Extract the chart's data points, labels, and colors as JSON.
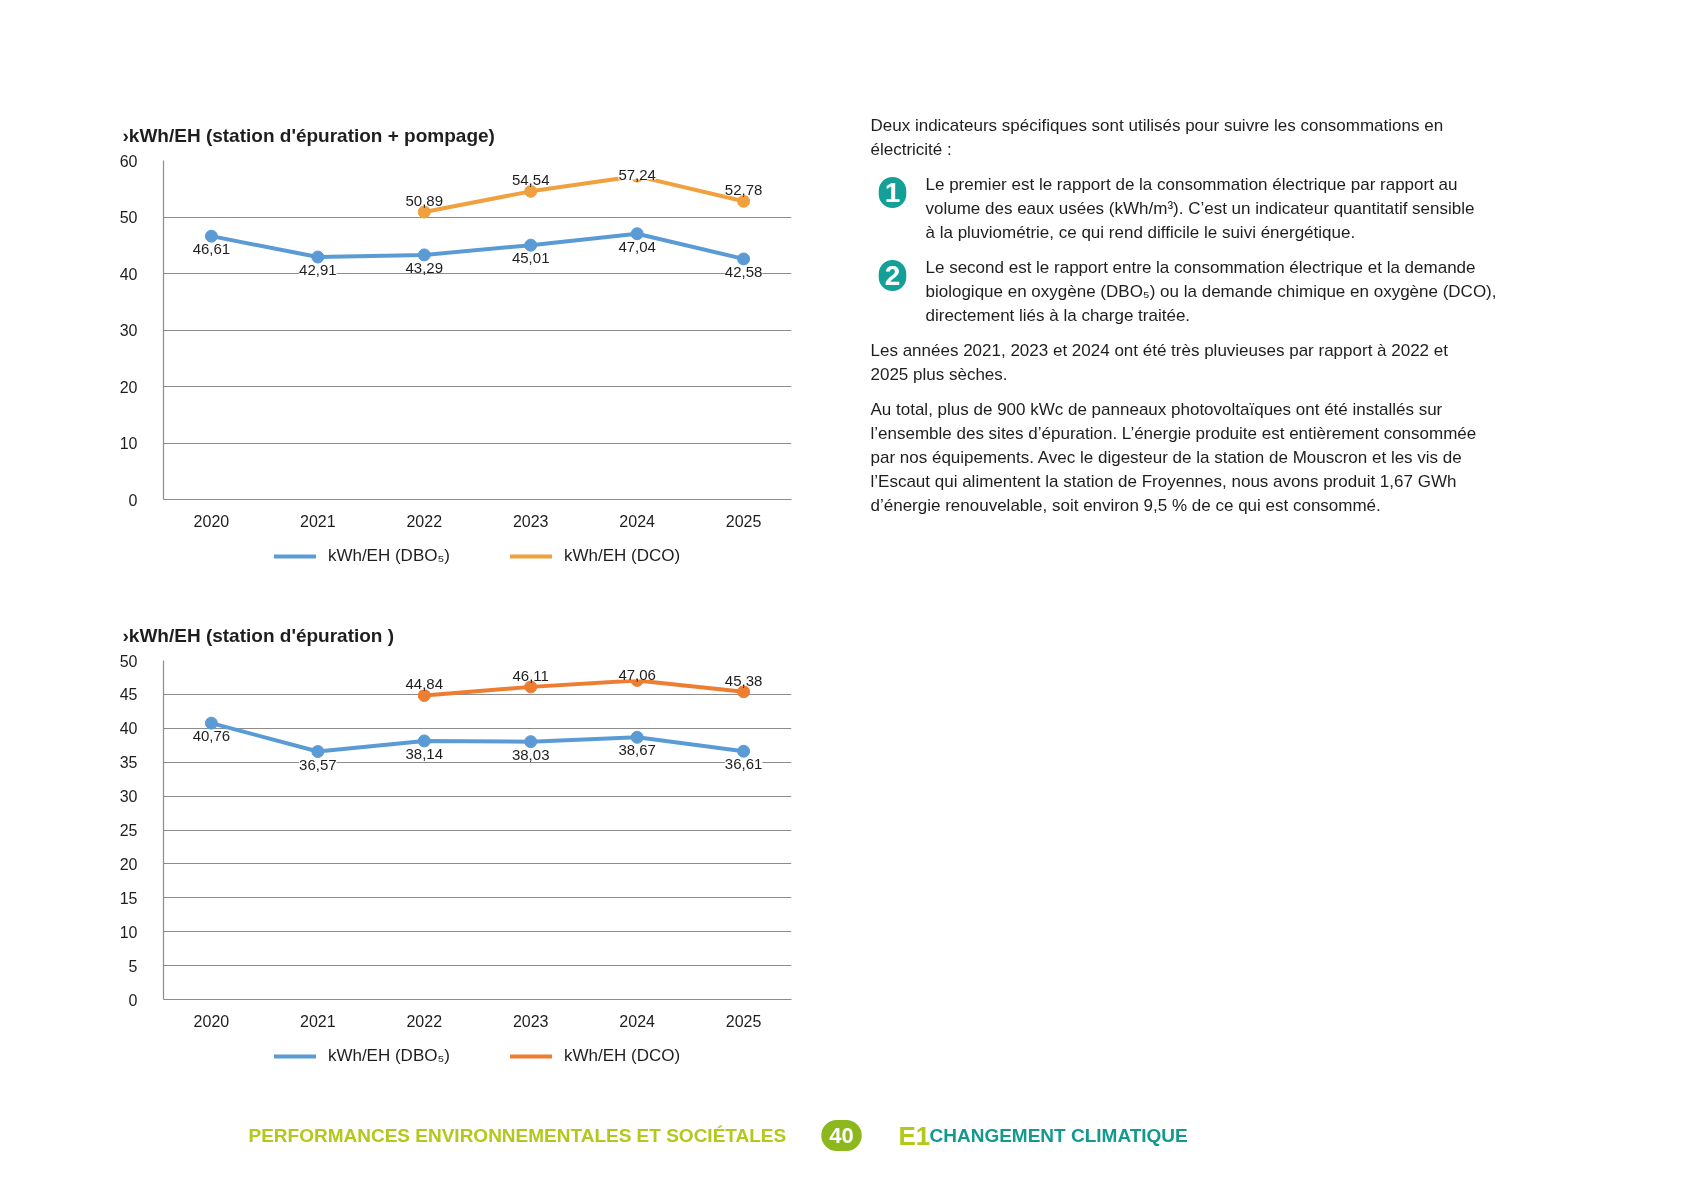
{
  "chart_data": [
    {
      "type": "line",
      "title": "›kWh/EH (station d'épuration + pompage)",
      "categories": [
        "2020",
        "2021",
        "2022",
        "2023",
        "2024",
        "2025"
      ],
      "series": [
        {
          "name": "kWh/EH (DBO₅)",
          "color": "#5b9bd5",
          "values": [
            46.61,
            42.91,
            43.29,
            45.01,
            47.04,
            42.58
          ],
          "value_labels": [
            "46,61",
            "42,91",
            "43,29",
            "45,01",
            "47,04",
            "42,58"
          ]
        },
        {
          "name": "kWh/EH (DCO)",
          "color": "#f0a03c",
          "values": [
            null,
            null,
            50.89,
            54.54,
            57.24,
            52.78
          ],
          "value_labels": [
            null,
            null,
            "50,89",
            "54,54",
            "57,24",
            "52,78"
          ]
        }
      ],
      "ylim": [
        0,
        60
      ],
      "yticks": [
        0,
        10,
        20,
        30,
        40,
        50,
        60
      ],
      "grid": "y",
      "legend": "bottom",
      "marker": "circle"
    },
    {
      "type": "line",
      "title": "›kWh/EH (station d'épuration )",
      "categories": [
        "2020",
        "2021",
        "2022",
        "2023",
        "2024",
        "2025"
      ],
      "series": [
        {
          "name": "kWh/EH (DBO₅)",
          "color": "#5b9bd5",
          "values": [
            40.76,
            36.57,
            38.14,
            38.03,
            38.67,
            36.61
          ],
          "value_labels": [
            "40,76",
            "36,57",
            "38,14",
            "38,03",
            "38,67",
            "36,61"
          ]
        },
        {
          "name": "kWh/EH (DCO)",
          "color": "#ed7d31",
          "values": [
            null,
            null,
            44.84,
            46.11,
            47.06,
            45.38
          ],
          "value_labels": [
            null,
            null,
            "44,84",
            "46,11",
            "47,06",
            "45,38"
          ]
        }
      ],
      "ylim": [
        0,
        50
      ],
      "yticks": [
        0,
        5,
        10,
        15,
        20,
        25,
        30,
        35,
        40,
        45,
        50
      ],
      "grid": "y",
      "legend": "bottom",
      "marker": "circle"
    },
    {
      "type": "other",
      "annotations": [
        "Deux indicateurs spécifiques sont utilisés pour suivre les consommations en électricité :",
        "1",
        "Le premier est le rapport de la consommation électrique par rapport au volume des eaux usées (kWh/m³). C’est un indicateur quantitatif sensible à la pluviométrie, ce qui rend difficile le suivi énergétique.",
        "2",
        "Le second est le rapport entre la consommation électrique et la demande biologique en oxygène (DBO₅) ou la demande chimique en oxygène (DCO), directement liés à la charge traitée.",
        "Les années 2021, 2023 et 2024 ont été très pluvieuses par rapport à 2022 et 2025 plus sèches.",
        "Au total, plus de 900 kWc de panneaux photovoltaïques ont été installés sur l’ensemble des sites d’épuration. L’énergie produite est entièrement consommée par nos équipements. Avec le digesteur de la station de Mouscron et les vis de l’Escaut qui alimentent la station de Froyennes, nous avons produit 1,67 GWh d’énergie renouvelable, soit environ 9,5 % de ce qui est consommé."
      ]
    },
    {
      "type": "other",
      "annotations": [
        "PERFORMANCES ENVIRONNEMENTALES ET SOCIÉTALES",
        "40",
        "E1",
        "CHANGEMENT CLIMATIQUE"
      ]
    }
  ]
}
